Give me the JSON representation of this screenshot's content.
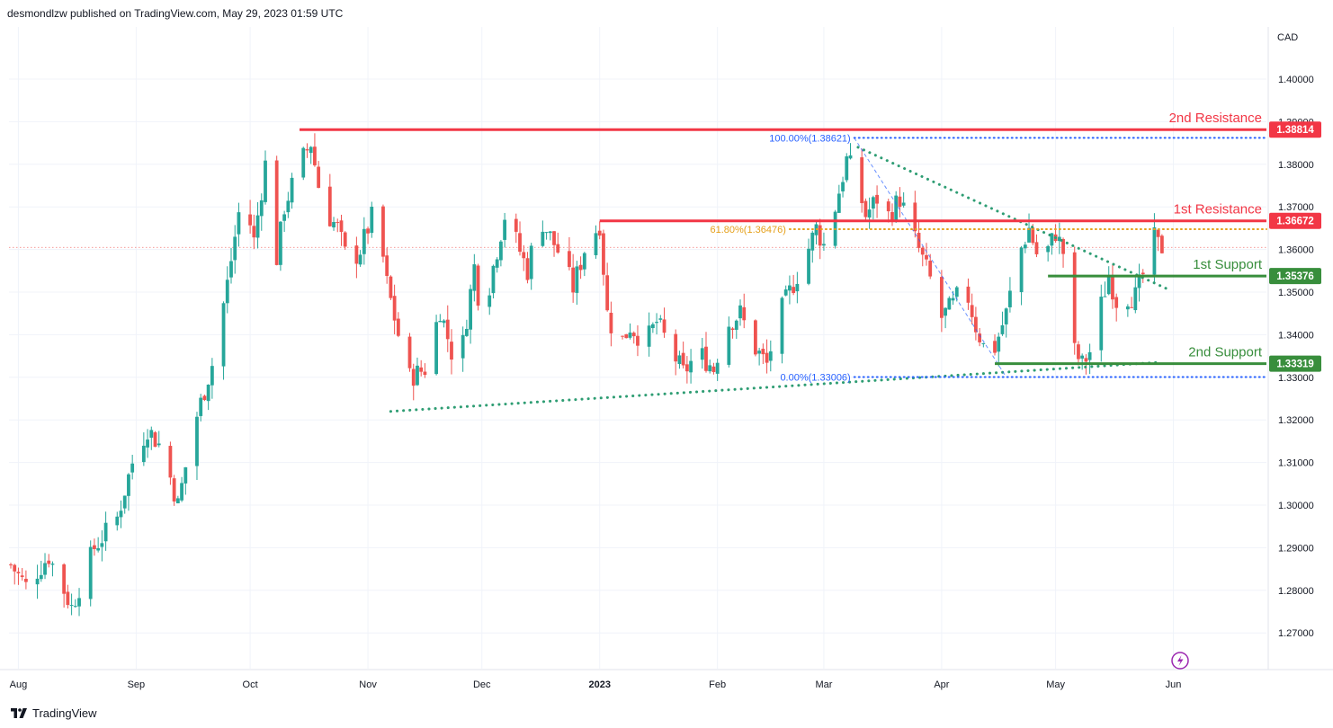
{
  "header": {
    "publisher_text": "desmondlzw published on TradingView.com, May 29, 2023 01:59 UTC"
  },
  "footer": {
    "brand": "TradingView",
    "logo_icon": "tradingview-logo-icon"
  },
  "colors": {
    "up": "#26a69a",
    "down": "#ef5350",
    "resistance": "#f23645",
    "support": "#388e3c",
    "fib_top": "#2962ff",
    "fib_618": "#e5a01a",
    "trendline": "#2e9d73",
    "grid": "#f0f3fa"
  },
  "chart_data": {
    "type": "candlestick",
    "symbol_currency": "CAD",
    "ylim": [
      1.262,
      1.405
    ],
    "y_ticks": [
      "1.40000",
      "1.39000",
      "1.38000",
      "1.37000",
      "1.36000",
      "1.35000",
      "1.34000",
      "1.33000",
      "1.32000",
      "1.31000",
      "1.30000",
      "1.29000",
      "1.28000",
      "1.27000"
    ],
    "x_ticks": [
      {
        "label": "Aug",
        "day": 2,
        "bold": false
      },
      {
        "label": "Sep",
        "day": 33,
        "bold": false
      },
      {
        "label": "Oct",
        "day": 63,
        "bold": false
      },
      {
        "label": "Nov",
        "day": 94,
        "bold": false
      },
      {
        "label": "Dec",
        "day": 124,
        "bold": false
      },
      {
        "label": "2023",
        "day": 155,
        "bold": true
      },
      {
        "label": "Feb",
        "day": 186,
        "bold": false
      },
      {
        "label": "Mar",
        "day": 214,
        "bold": false
      },
      {
        "label": "Apr",
        "day": 245,
        "bold": false
      },
      {
        "label": "May",
        "day": 275,
        "bold": false
      },
      {
        "label": "Jun",
        "day": 306,
        "bold": false
      }
    ],
    "anchors": [
      {
        "day": 0,
        "price": 1.286
      },
      {
        "day": 4,
        "price": 1.281
      },
      {
        "day": 10,
        "price": 1.288
      },
      {
        "day": 16,
        "price": 1.276
      },
      {
        "day": 22,
        "price": 1.29
      },
      {
        "day": 28,
        "price": 1.297
      },
      {
        "day": 32,
        "price": 1.31
      },
      {
        "day": 36,
        "price": 1.318
      },
      {
        "day": 40,
        "price": 1.313
      },
      {
        "day": 44,
        "price": 1.3
      },
      {
        "day": 48,
        "price": 1.318
      },
      {
        "day": 53,
        "price": 1.333
      },
      {
        "day": 57,
        "price": 1.352
      },
      {
        "day": 61,
        "price": 1.374
      },
      {
        "day": 64,
        "price": 1.362
      },
      {
        "day": 67,
        "price": 1.38
      },
      {
        "day": 69,
        "price": 1.352
      },
      {
        "day": 72,
        "price": 1.37
      },
      {
        "day": 76,
        "price": 1.38
      },
      {
        "day": 79,
        "price": 1.385
      },
      {
        "day": 82,
        "price": 1.37
      },
      {
        "day": 86,
        "price": 1.365
      },
      {
        "day": 89,
        "price": 1.356
      },
      {
        "day": 92,
        "price": 1.36
      },
      {
        "day": 96,
        "price": 1.37
      },
      {
        "day": 99,
        "price": 1.352
      },
      {
        "day": 102,
        "price": 1.34
      },
      {
        "day": 105,
        "price": 1.33
      },
      {
        "day": 109,
        "price": 1.332
      },
      {
        "day": 113,
        "price": 1.346
      },
      {
        "day": 116,
        "price": 1.336
      },
      {
        "day": 119,
        "price": 1.338
      },
      {
        "day": 122,
        "price": 1.356
      },
      {
        "day": 124,
        "price": 1.343
      },
      {
        "day": 127,
        "price": 1.356
      },
      {
        "day": 130,
        "price": 1.368
      },
      {
        "day": 133,
        "price": 1.362
      },
      {
        "day": 136,
        "price": 1.355
      },
      {
        "day": 139,
        "price": 1.368
      },
      {
        "day": 142,
        "price": 1.363
      },
      {
        "day": 145,
        "price": 1.358
      },
      {
        "day": 148,
        "price": 1.351
      },
      {
        "day": 151,
        "price": 1.36
      },
      {
        "day": 155,
        "price": 1.366
      },
      {
        "day": 157,
        "price": 1.345
      },
      {
        "day": 160,
        "price": 1.337
      },
      {
        "day": 163,
        "price": 1.342
      },
      {
        "day": 167,
        "price": 1.338
      },
      {
        "day": 170,
        "price": 1.343
      },
      {
        "day": 174,
        "price": 1.336
      },
      {
        "day": 177,
        "price": 1.331
      },
      {
        "day": 181,
        "price": 1.336
      },
      {
        "day": 185,
        "price": 1.332
      },
      {
        "day": 188,
        "price": 1.342
      },
      {
        "day": 192,
        "price": 1.345
      },
      {
        "day": 195,
        "price": 1.338
      },
      {
        "day": 199,
        "price": 1.333
      },
      {
        "day": 202,
        "price": 1.344
      },
      {
        "day": 205,
        "price": 1.35
      },
      {
        "day": 209,
        "price": 1.358
      },
      {
        "day": 212,
        "price": 1.365
      },
      {
        "day": 214,
        "price": 1.361
      },
      {
        "day": 217,
        "price": 1.37
      },
      {
        "day": 220,
        "price": 1.381
      },
      {
        "day": 222,
        "price": 1.378
      },
      {
        "day": 225,
        "price": 1.368
      },
      {
        "day": 228,
        "price": 1.372
      },
      {
        "day": 231,
        "price": 1.368
      },
      {
        "day": 234,
        "price": 1.372
      },
      {
        "day": 236,
        "price": 1.367
      },
      {
        "day": 239,
        "price": 1.36
      },
      {
        "day": 242,
        "price": 1.353
      },
      {
        "day": 245,
        "price": 1.344
      },
      {
        "day": 248,
        "price": 1.347
      },
      {
        "day": 251,
        "price": 1.352
      },
      {
        "day": 254,
        "price": 1.342
      },
      {
        "day": 257,
        "price": 1.335
      },
      {
        "day": 259,
        "price": 1.337
      },
      {
        "day": 262,
        "price": 1.345
      },
      {
        "day": 265,
        "price": 1.358
      },
      {
        "day": 268,
        "price": 1.365
      },
      {
        "day": 271,
        "price": 1.356
      },
      {
        "day": 273,
        "price": 1.36
      },
      {
        "day": 275,
        "price": 1.364
      },
      {
        "day": 278,
        "price": 1.357
      },
      {
        "day": 280,
        "price": 1.336
      },
      {
        "day": 282,
        "price": 1.333
      },
      {
        "day": 284,
        "price": 1.336
      },
      {
        "day": 287,
        "price": 1.347
      },
      {
        "day": 289,
        "price": 1.354
      },
      {
        "day": 292,
        "price": 1.345
      },
      {
        "day": 294,
        "price": 1.349
      },
      {
        "day": 296,
        "price": 1.349
      },
      {
        "day": 298,
        "price": 1.354
      },
      {
        "day": 300,
        "price": 1.364
      },
      {
        "day": 302,
        "price": 1.361
      },
      {
        "day": 303,
        "price": 1.3605
      }
    ],
    "series": [],
    "horizontal_levels": [
      {
        "label": "2nd Resistance",
        "badge": "1.38814",
        "price": 1.38814,
        "start_day": 76,
        "kind": "resistance"
      },
      {
        "label": "1st Resistance",
        "badge": "1.36672",
        "price": 1.36672,
        "start_day": 155,
        "kind": "resistance"
      },
      {
        "label": "1st Support",
        "badge": "1.35376",
        "price": 1.35376,
        "start_day": 273,
        "kind": "support"
      },
      {
        "label": "2nd Support",
        "badge": "1.33319",
        "price": 1.33319,
        "start_day": 259,
        "kind": "support"
      }
    ],
    "fibonacci": [
      {
        "label": "100.00%(1.38621)",
        "price": 1.38621,
        "start_day": 222,
        "color": "#2962ff"
      },
      {
        "label": "61.80%(1.36476)",
        "price": 1.36476,
        "start_day": 205,
        "color": "#e5a01a"
      },
      {
        "label": "0.00%(1.33006)",
        "price": 1.33006,
        "start_day": 222,
        "color": "#2962ff"
      }
    ],
    "trendlines": [
      {
        "name": "rising-support-trendline",
        "from": {
          "day": 100,
          "price": 1.322
        },
        "to": {
          "day": 302,
          "price": 1.3335
        }
      },
      {
        "name": "falling-resistance-trendline",
        "from": {
          "day": 223,
          "price": 1.384
        },
        "to": {
          "day": 305,
          "price": 1.3505
        }
      }
    ],
    "current_price": 1.3605
  }
}
